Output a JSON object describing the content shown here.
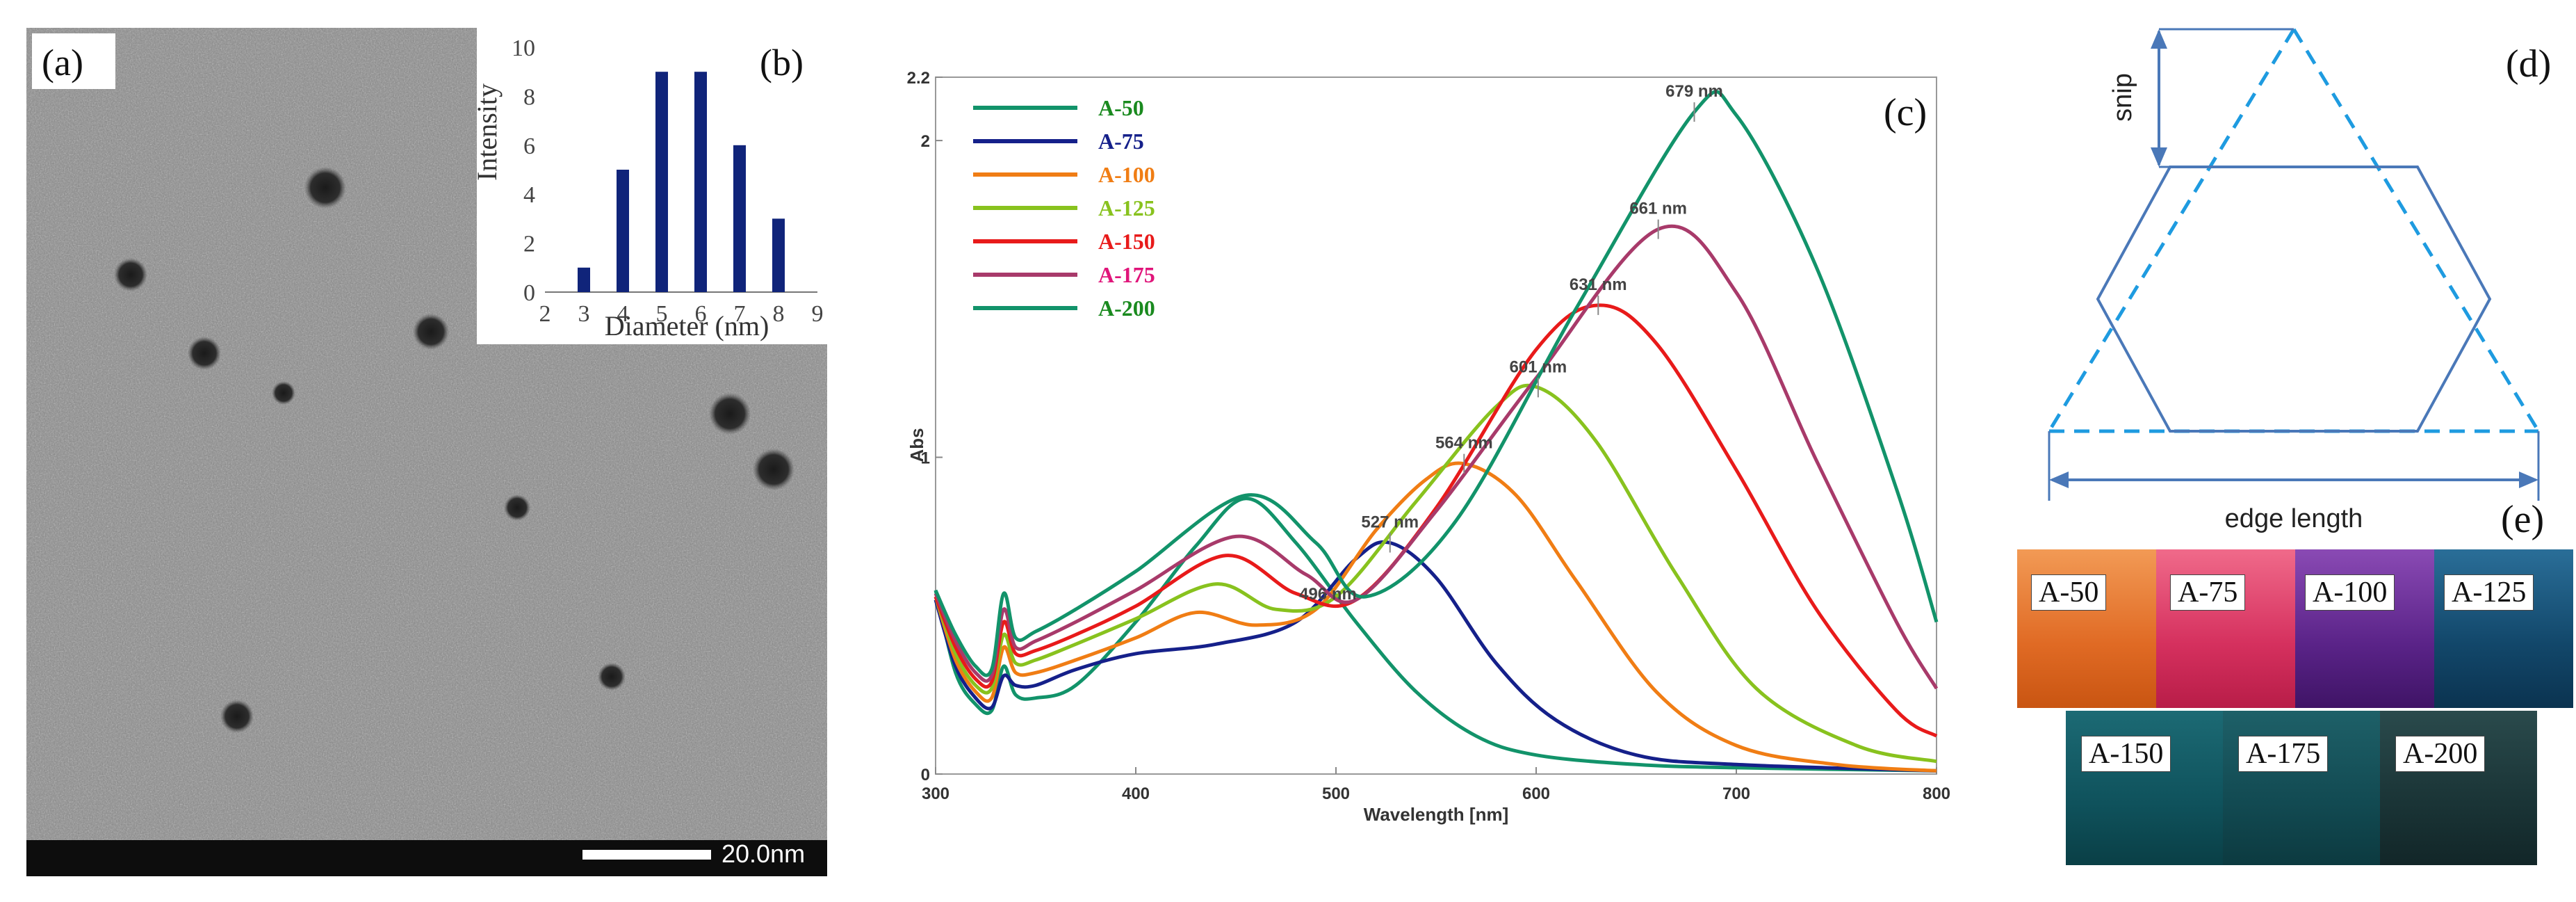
{
  "panels": {
    "a": "(a)",
    "b": "(b)",
    "c": "(c)",
    "d": "(d)",
    "e": "(e)"
  },
  "tem": {
    "scale_bar_label": "20.0nm"
  },
  "chart_data": [
    {
      "type": "bar",
      "panel": "(b)",
      "title": "",
      "xlabel": "Diameter (nm)",
      "ylabel": "Intensity",
      "categories": [
        "3",
        "4",
        "5",
        "6",
        "7",
        "8"
      ],
      "values": [
        1,
        5,
        9,
        9,
        6,
        3
      ],
      "xticks": [
        "2",
        "3",
        "4",
        "5",
        "6",
        "7",
        "8",
        "9"
      ],
      "yticks": [
        "0",
        "2",
        "4",
        "6",
        "8",
        "10"
      ],
      "xlim": [
        2,
        9
      ],
      "ylim": [
        0,
        10
      ],
      "bar_color": "#10247a"
    },
    {
      "type": "line",
      "panel": "(c)",
      "xlabel": "Wavelength [nm]",
      "ylabel": "Abs",
      "xlim": [
        300,
        800
      ],
      "ylim": [
        0,
        2.2
      ],
      "xticks": [
        "300",
        "400",
        "500",
        "600",
        "700",
        "800"
      ],
      "yticks": [
        "0",
        "1",
        "2",
        "2.2"
      ],
      "series": [
        {
          "name": "A-50",
          "color": "#12936a",
          "label_color": "#1a8a1f",
          "peak_label": "",
          "x": [
            300,
            310,
            320,
            328,
            334,
            340,
            350,
            370,
            400,
            430,
            455,
            480,
            510,
            540,
            570,
            600,
            650,
            700,
            800
          ],
          "y": [
            0.58,
            0.32,
            0.22,
            0.2,
            0.34,
            0.25,
            0.24,
            0.28,
            0.48,
            0.72,
            0.87,
            0.73,
            0.48,
            0.26,
            0.12,
            0.06,
            0.03,
            0.02,
            0.01
          ]
        },
        {
          "name": "A-75",
          "color": "#15208a",
          "label_color": "#15208a",
          "peak_label": "527 nm",
          "x": [
            300,
            310,
            320,
            328,
            334,
            340,
            350,
            370,
            400,
            440,
            480,
            510,
            527,
            550,
            580,
            610,
            650,
            700,
            800
          ],
          "y": [
            0.55,
            0.34,
            0.24,
            0.21,
            0.31,
            0.28,
            0.28,
            0.33,
            0.38,
            0.41,
            0.48,
            0.68,
            0.73,
            0.62,
            0.35,
            0.17,
            0.06,
            0.03,
            0.01
          ]
        },
        {
          "name": "A-100",
          "color": "#f07d14",
          "label_color": "#f07d14",
          "peak_label": "",
          "x": [
            300,
            310,
            320,
            328,
            334,
            340,
            350,
            370,
            400,
            430,
            460,
            490,
            520,
            545,
            564,
            590,
            620,
            660,
            700,
            750,
            800
          ],
          "y": [
            0.56,
            0.36,
            0.26,
            0.24,
            0.4,
            0.32,
            0.32,
            0.36,
            0.43,
            0.51,
            0.47,
            0.52,
            0.77,
            0.93,
            0.98,
            0.88,
            0.61,
            0.26,
            0.09,
            0.03,
            0.01
          ]
        },
        {
          "name": "A-125",
          "color": "#88c21e",
          "label_color": "#88c21e",
          "peak_label": "601 nm",
          "x": [
            300,
            310,
            320,
            328,
            334,
            340,
            350,
            370,
            400,
            440,
            470,
            500,
            540,
            580,
            601,
            630,
            670,
            710,
            760,
            800
          ],
          "y": [
            0.56,
            0.38,
            0.28,
            0.27,
            0.44,
            0.35,
            0.36,
            0.41,
            0.49,
            0.6,
            0.52,
            0.56,
            0.86,
            1.16,
            1.22,
            1.05,
            0.63,
            0.27,
            0.09,
            0.04
          ]
        },
        {
          "name": "A-150",
          "color": "#e81a1a",
          "label_color": "#e81a1a",
          "peak_label": "631 nm",
          "x": [
            300,
            310,
            320,
            328,
            334,
            340,
            350,
            370,
            400,
            445,
            480,
            510,
            550,
            600,
            631,
            660,
            700,
            740,
            780,
            800
          ],
          "y": [
            0.56,
            0.4,
            0.3,
            0.29,
            0.48,
            0.38,
            0.39,
            0.44,
            0.53,
            0.69,
            0.57,
            0.55,
            0.84,
            1.34,
            1.48,
            1.36,
            0.96,
            0.52,
            0.2,
            0.12
          ]
        },
        {
          "name": "A-175",
          "color": "#a83a6a",
          "label_color": "#e0157a",
          "peak_label": "661 nm",
          "x": [
            300,
            310,
            320,
            328,
            334,
            340,
            350,
            370,
            400,
            450,
            485,
            510,
            550,
            600,
            661,
            700,
            740,
            780,
            800
          ],
          "y": [
            0.57,
            0.42,
            0.32,
            0.31,
            0.52,
            0.4,
            0.42,
            0.48,
            0.58,
            0.75,
            0.63,
            0.55,
            0.83,
            1.25,
            1.72,
            1.52,
            0.99,
            0.48,
            0.27
          ]
        },
        {
          "name": "A-200",
          "color": "#12936a",
          "label_color": "#1a8a1f",
          "peak_label": "679 nm",
          "x": [
            300,
            310,
            320,
            328,
            334,
            340,
            350,
            370,
            400,
            455,
            490,
            515,
            560,
            620,
            679,
            700,
            740,
            780,
            800
          ],
          "y": [
            0.58,
            0.44,
            0.34,
            0.33,
            0.57,
            0.43,
            0.45,
            0.52,
            0.64,
            0.88,
            0.73,
            0.56,
            0.8,
            1.47,
            2.09,
            2.08,
            1.6,
            0.9,
            0.48
          ]
        }
      ],
      "annotations": [
        {
          "label": "496 nm",
          "x": 496,
          "y": 0.52
        }
      ]
    }
  ],
  "diagram": {
    "snip_label": "snip",
    "edge_length_label": "edge length",
    "line_color": "#4a78b8",
    "dash_color": "#1e9be0"
  },
  "photos": {
    "top_labels": [
      "A-50",
      "A-75",
      "A-100",
      "A-125"
    ],
    "bottom_labels": [
      "A-150",
      "A-175",
      "A-200"
    ],
    "top_colors": [
      "#e6702a",
      "#d8386a",
      "#5e2a8c",
      "#17547a"
    ],
    "bottom_colors": [
      "#0e5660",
      "#14505a",
      "#173c40"
    ]
  }
}
